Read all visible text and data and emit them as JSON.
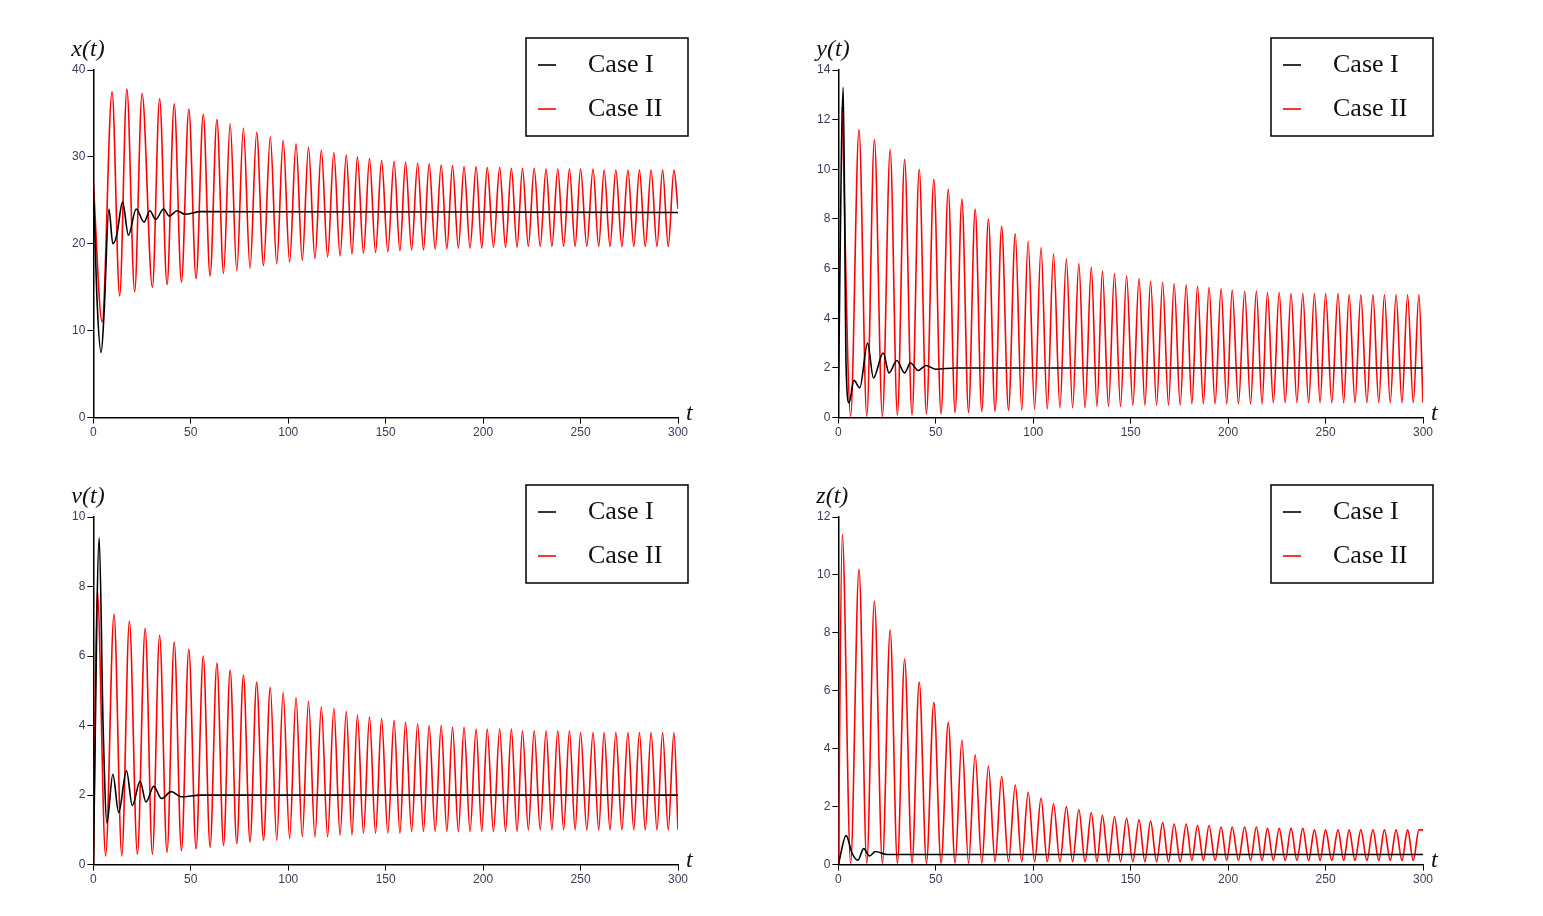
{
  "chart_data": [
    {
      "type": "line",
      "ylabel": "x(t)",
      "xlabel": "t",
      "xlim": [
        0,
        300
      ],
      "xticks": [
        0,
        50,
        100,
        150,
        200,
        250,
        300
      ],
      "ylim": [
        0,
        40
      ],
      "yticks": [
        0,
        10,
        20,
        30,
        40
      ],
      "legend": "top right",
      "marker": "none",
      "line_style": "solid",
      "grid": false,
      "series": [
        {
          "name": "Case I",
          "color": "#000000",
          "x": [
            0,
            2,
            4,
            5.5,
            8,
            10,
            12,
            15,
            18,
            22,
            26,
            29,
            32,
            36,
            39,
            43,
            47,
            55,
            300
          ],
          "values": [
            27,
            13,
            7.5,
            12,
            24,
            20,
            21,
            24.8,
            21,
            24,
            22.5,
            23.8,
            22.8,
            24,
            23.2,
            23.8,
            23.4,
            23.7,
            23.6
          ]
        },
        {
          "name": "Case II",
          "color": "#ff0000",
          "x": [
            0,
            4.5,
            9.6,
            13.5,
            17.2,
            21.2,
            25,
            30.3,
            34,
            37.8,
            41.5,
            45.2,
            49,
            52.7,
            56.4,
            59.9,
            63.4,
            66.8,
            70.2,
            73.6,
            77,
            80.4,
            83.8,
            87.3,
            90.8,
            94.1,
            97.4,
            100.7,
            104,
            107.2,
            110.4,
            113.7,
            117,
            120.2,
            123.4,
            126.6,
            129.8,
            132.7,
            135.5,
            138.6,
            141.7,
            144.8,
            147.9,
            151.1,
            154.3,
            157.3,
            160.2,
            163.3,
            166.4,
            169.4,
            172.3,
            175.4,
            178.5,
            181.4,
            184.3,
            187.3,
            190.2,
            193.3,
            196.4,
            199.3,
            202.1,
            205.3,
            208.5,
            211.5,
            214.5,
            217.4,
            220.2,
            223.2,
            226.2,
            229.3,
            232.3,
            235.3,
            238.3,
            241.3,
            244.3,
            247.2,
            250,
            253.2,
            256.4,
            259.3,
            262.1,
            265.1,
            268.1,
            271.2,
            274.3,
            277.3,
            280.2,
            283.2,
            286.2,
            289.2,
            292.1,
            295,
            297.9,
            300
          ],
          "values": [
            27,
            11,
            37.5,
            14,
            37.8,
            14.5,
            37.3,
            15,
            36.7,
            15.3,
            36.1,
            15.6,
            35.5,
            16,
            34.9,
            16.3,
            34.3,
            16.6,
            33.8,
            16.9,
            33.3,
            17.2,
            32.8,
            17.5,
            32.3,
            17.7,
            31.9,
            17.9,
            31.5,
            18.1,
            31.1,
            18.3,
            30.8,
            18.5,
            30.5,
            18.6,
            30.2,
            18.8,
            30.0,
            18.9,
            29.8,
            19.0,
            29.6,
            19.1,
            29.5,
            19.2,
            29.4,
            19.3,
            29.3,
            19.3,
            29.2,
            19.4,
            29.1,
            19.4,
            29.0,
            19.5,
            28.9,
            19.5,
            28.9,
            19.5,
            28.8,
            19.6,
            28.8,
            19.6,
            28.7,
            19.6,
            28.7,
            19.7,
            28.7,
            19.7,
            28.6,
            19.7,
            28.6,
            19.7,
            28.6,
            19.7,
            28.6,
            19.7,
            28.6,
            19.7,
            28.5,
            19.7,
            28.5,
            19.7,
            28.5,
            19.7,
            28.5,
            19.7,
            28.5,
            19.7,
            28.5,
            19.7,
            28.5,
            24
          ]
        }
      ]
    },
    {
      "type": "line",
      "ylabel": "y(t)",
      "xlabel": "t",
      "xlim": [
        0,
        300
      ],
      "xticks": [
        0,
        50,
        100,
        150,
        200,
        250,
        300
      ],
      "ylim": [
        0,
        14
      ],
      "yticks": [
        0,
        2,
        4,
        6,
        8,
        10,
        12,
        14
      ],
      "legend": "top right",
      "marker": "none",
      "line_style": "solid",
      "grid": false,
      "x": [
        2,
        6.3,
        10.6,
        14.6,
        18.5,
        22.6,
        26.6,
        30.3,
        34,
        37.8,
        41.5,
        45.2,
        49,
        52.7,
        56.4,
        59.9,
        63.4,
        66.8,
        70.2,
        73.6,
        77,
        80.4,
        83.8,
        87.3,
        90.8,
        94.1,
        97.4,
        100.7,
        104,
        107.2,
        110.4,
        113.7,
        117,
        120.2,
        123.4,
        126.6,
        129.8,
        132.7,
        135.5,
        138.6,
        141.7,
        144.8,
        147.9,
        151.1,
        154.3,
        157.3,
        160.2,
        163.3,
        166.4,
        169.4,
        172.3,
        175.4,
        178.5,
        181.4,
        184.3,
        187.3,
        190.2,
        193.3,
        196.4,
        199.3,
        202.1,
        205.3,
        208.5,
        211.5,
        214.5,
        217.4,
        220.2,
        223.2,
        226.2,
        229.3,
        232.3,
        235.3,
        238.3,
        241.3,
        244.3,
        247.2,
        250,
        253.2,
        256.4,
        259.3,
        262.1,
        265.1,
        268.1,
        271.2,
        274.3,
        277.3,
        280.2,
        283.2,
        286.2,
        289.2,
        292.1,
        295,
        297.9,
        300
      ],
      "series": [
        {
          "name": "Case I",
          "color": "#000000",
          "x": [
            0,
            2.5,
            4,
            5.5,
            8,
            11,
            15,
            18,
            23,
            26,
            30,
            34,
            37,
            41,
            45,
            50,
            60,
            300
          ],
          "values": [
            1,
            13.3,
            2,
            0.6,
            1.5,
            1.2,
            3.0,
            1.6,
            2.6,
            1.8,
            2.3,
            1.8,
            2.2,
            1.9,
            2.1,
            1.95,
            2.0,
            2.0
          ]
        },
        {
          "name": "Case II",
          "color": "#ff0000",
          "values": [
            12.5,
            0.05,
            11.6,
            0.05,
            11.2,
            0.05,
            10.8,
            0.1,
            10.4,
            0.1,
            10.0,
            0.15,
            9.6,
            0.15,
            9.2,
            0.2,
            8.8,
            0.2,
            8.4,
            0.25,
            8.0,
            0.25,
            7.7,
            0.3,
            7.4,
            0.3,
            7.1,
            0.35,
            6.85,
            0.35,
            6.6,
            0.4,
            6.4,
            0.4,
            6.2,
            0.4,
            6.05,
            0.45,
            5.9,
            0.45,
            5.8,
            0.45,
            5.7,
            0.5,
            5.6,
            0.5,
            5.5,
            0.5,
            5.45,
            0.5,
            5.4,
            0.5,
            5.35,
            0.55,
            5.3,
            0.55,
            5.25,
            0.55,
            5.2,
            0.55,
            5.15,
            0.55,
            5.1,
            0.55,
            5.1,
            0.55,
            5.05,
            0.6,
            5.05,
            0.6,
            5.0,
            0.6,
            5.0,
            0.6,
            5.0,
            0.6,
            5.0,
            0.6,
            5.0,
            0.6,
            4.95,
            0.6,
            4.95,
            0.6,
            4.95,
            0.6,
            4.95,
            0.6,
            4.95,
            0.6,
            4.95,
            0.6,
            4.95,
            0.6
          ]
        }
      ]
    },
    {
      "type": "line",
      "ylabel": "v(t)",
      "xlabel": "t",
      "xlim": [
        0,
        300
      ],
      "xticks": [
        0,
        50,
        100,
        150,
        200,
        250,
        300
      ],
      "ylim": [
        0,
        10
      ],
      "yticks": [
        0,
        2,
        4,
        6,
        8,
        10
      ],
      "legend": "top right",
      "marker": "none",
      "line_style": "solid",
      "grid": false,
      "x": [
        0,
        2,
        6.3,
        10.6,
        14.6,
        18.5,
        22.6,
        26.6,
        30.3,
        34,
        37.8,
        41.5,
        45.2,
        49,
        52.7,
        56.4,
        59.9,
        63.4,
        66.8,
        70.2,
        73.6,
        77,
        80.4,
        83.8,
        87.3,
        90.8,
        94.1,
        97.4,
        100.7,
        104,
        107.2,
        110.4,
        113.7,
        117,
        120.2,
        123.4,
        126.6,
        129.8,
        132.7,
        135.5,
        138.6,
        141.7,
        144.8,
        147.9,
        151.1,
        154.3,
        157.3,
        160.2,
        163.3,
        166.4,
        169.4,
        172.3,
        175.4,
        178.5,
        181.4,
        184.3,
        187.3,
        190.2,
        193.3,
        196.4,
        199.3,
        202.1,
        205.3,
        208.5,
        211.5,
        214.5,
        217.4,
        220.2,
        223.2,
        226.2,
        229.3,
        232.3,
        235.3,
        238.3,
        241.3,
        244.3,
        247.2,
        250,
        253.2,
        256.4,
        259.3,
        262.1,
        265.1,
        268.1,
        271.2,
        274.3,
        277.3,
        280.2,
        283.2,
        286.2,
        289.2,
        292.1,
        295,
        297.9,
        300
      ],
      "series": [
        {
          "name": "Case I",
          "color": "#000000",
          "x": [
            0,
            3,
            5,
            7,
            10,
            13,
            17,
            20,
            24,
            27,
            31,
            35,
            40,
            45,
            55,
            300
          ],
          "values": [
            0,
            9.4,
            4,
            1.2,
            2.6,
            1.5,
            2.7,
            1.7,
            2.4,
            1.8,
            2.25,
            1.9,
            2.1,
            1.95,
            2.0,
            2.0
          ]
        },
        {
          "name": "Case II",
          "color": "#ff0000",
          "values": [
            0,
            7.9,
            0.25,
            7.2,
            0.25,
            7.0,
            0.3,
            6.8,
            0.3,
            6.6,
            0.35,
            6.4,
            0.4,
            6.2,
            0.45,
            6.0,
            0.5,
            5.8,
            0.55,
            5.6,
            0.6,
            5.45,
            0.65,
            5.25,
            0.7,
            5.1,
            0.7,
            4.95,
            0.75,
            4.8,
            0.8,
            4.7,
            0.8,
            4.55,
            0.8,
            4.5,
            0.85,
            4.4,
            0.85,
            4.3,
            0.9,
            4.25,
            0.9,
            4.2,
            0.9,
            4.15,
            0.9,
            4.1,
            0.95,
            4.05,
            0.95,
            4.0,
            0.95,
            4.0,
            0.95,
            3.95,
            0.95,
            3.95,
            0.95,
            3.9,
            0.95,
            3.9,
            0.95,
            3.9,
            0.95,
            3.9,
            0.95,
            3.85,
            1.0,
            3.85,
            1.0,
            3.85,
            1.0,
            3.85,
            1.0,
            3.85,
            1.0,
            3.8,
            1.0,
            3.8,
            1.0,
            3.8,
            1.0,
            3.8,
            1.0,
            3.8,
            1.0,
            3.8,
            1.0,
            3.8,
            1.0,
            3.8,
            1.0,
            3.8,
            1.0
          ]
        }
      ]
    },
    {
      "type": "line",
      "ylabel": "z(t)",
      "xlabel": "t",
      "xlim": [
        0,
        300
      ],
      "xticks": [
        0,
        50,
        100,
        150,
        200,
        250,
        300
      ],
      "ylim": [
        0,
        12
      ],
      "yticks": [
        0,
        2,
        4,
        6,
        8,
        10,
        12
      ],
      "legend": "top right",
      "marker": "none",
      "line_style": "solid",
      "grid": false,
      "x": [
        0,
        2,
        6.3,
        10.6,
        14.6,
        18.5,
        22.6,
        26.6,
        30.3,
        34,
        37.8,
        41.5,
        45.2,
        49,
        52.7,
        56.4,
        59.9,
        63.4,
        66.8,
        70.2,
        73.6,
        77,
        80.4,
        83.8,
        87.3,
        90.8,
        94.1,
        97.4,
        100.7,
        104,
        107.2,
        110.4,
        113.7,
        117,
        120.2,
        123.4,
        126.6,
        129.8,
        132.7,
        135.5,
        138.6,
        141.7,
        144.8,
        147.9,
        151.1,
        154.3,
        157.3,
        160.2,
        163.3,
        166.4,
        169.4,
        172.3,
        175.4,
        178.5,
        181.4,
        184.3,
        187.3,
        190.2,
        193.3,
        196.4,
        199.3,
        202.1,
        205.3,
        208.5,
        211.5,
        214.5,
        217.4,
        220.2,
        223.2,
        226.2,
        229.3,
        232.3,
        235.3,
        238.3,
        241.3,
        244.3,
        247.2,
        250,
        253.2,
        256.4,
        259.3,
        262.1,
        265.1,
        268.1,
        271.2,
        274.3,
        277.3,
        280.2,
        283.2,
        286.2,
        289.2,
        292.1,
        295,
        297.9,
        300
      ],
      "series": [
        {
          "name": "Case I",
          "color": "#000000",
          "x": [
            0,
            4,
            7,
            10,
            13,
            16,
            19,
            25,
            300
          ],
          "values": [
            0,
            1.0,
            0.4,
            0.15,
            0.55,
            0.3,
            0.45,
            0.35,
            0.35
          ]
        },
        {
          "name": "Case II",
          "color": "#ff0000",
          "values": [
            0,
            11.4,
            0.05,
            10.2,
            0.05,
            9.1,
            0.05,
            8.1,
            0.05,
            7.1,
            0.05,
            6.3,
            0.05,
            5.6,
            0.05,
            4.9,
            0.05,
            4.3,
            0.05,
            3.8,
            0.05,
            3.4,
            0.1,
            3.05,
            0.1,
            2.75,
            0.1,
            2.5,
            0.1,
            2.3,
            0.1,
            2.1,
            0.1,
            2.0,
            0.1,
            1.9,
            0.1,
            1.8,
            0.1,
            1.7,
            0.1,
            1.65,
            0.1,
            1.6,
            0.1,
            1.55,
            0.1,
            1.5,
            0.1,
            1.45,
            0.1,
            1.4,
            0.1,
            1.4,
            0.15,
            1.35,
            0.15,
            1.35,
            0.15,
            1.3,
            0.15,
            1.3,
            0.15,
            1.3,
            0.15,
            1.3,
            0.15,
            1.25,
            0.15,
            1.25,
            0.15,
            1.25,
            0.15,
            1.25,
            0.15,
            1.2,
            0.15,
            1.2,
            0.15,
            1.2,
            0.15,
            1.2,
            0.15,
            1.2,
            0.15,
            1.2,
            0.15,
            1.2,
            0.15,
            1.2,
            0.15,
            1.2,
            0.15,
            1.2,
            1.2
          ]
        }
      ]
    }
  ]
}
